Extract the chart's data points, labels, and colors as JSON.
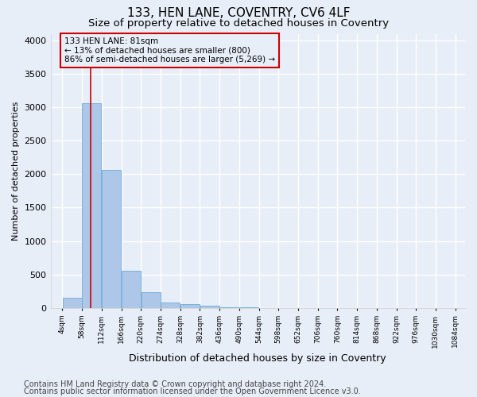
{
  "title": "133, HEN LANE, COVENTRY, CV6 4LF",
  "subtitle": "Size of property relative to detached houses in Coventry",
  "xlabel": "Distribution of detached houses by size in Coventry",
  "ylabel": "Number of detached properties",
  "bar_values": [
    150,
    3060,
    2060,
    560,
    230,
    75,
    55,
    35,
    10,
    5,
    3,
    2,
    1,
    0,
    0,
    0,
    0,
    0,
    0,
    0
  ],
  "bin_edges": [
    4,
    58,
    112,
    166,
    220,
    274,
    328,
    382,
    436,
    490,
    544,
    598,
    652,
    706,
    760,
    814,
    868,
    922,
    976,
    1030,
    1084
  ],
  "x_tick_labels": [
    "4sqm",
    "58sqm",
    "112sqm",
    "166sqm",
    "220sqm",
    "274sqm",
    "328sqm",
    "382sqm",
    "436sqm",
    "490sqm",
    "544sqm",
    "598sqm",
    "652sqm",
    "706sqm",
    "760sqm",
    "814sqm",
    "868sqm",
    "922sqm",
    "976sqm",
    "1030sqm",
    "1084sqm"
  ],
  "bar_color": "#aec6e8",
  "bar_edge_color": "#6aaed6",
  "background_color": "#e8eef8",
  "grid_color": "#ffffff",
  "property_line_x": 81,
  "property_line_color": "#cc0000",
  "annotation_text": "133 HEN LANE: 81sqm\n← 13% of detached houses are smaller (800)\n86% of semi-detached houses are larger (5,269) →",
  "annotation_box_color": "#cc0000",
  "ylim": [
    0,
    4100
  ],
  "yticks": [
    0,
    500,
    1000,
    1500,
    2000,
    2500,
    3000,
    3500,
    4000
  ],
  "footer_line1": "Contains HM Land Registry data © Crown copyright and database right 2024.",
  "footer_line2": "Contains public sector information licensed under the Open Government Licence v3.0.",
  "title_fontsize": 11,
  "subtitle_fontsize": 9.5,
  "footer_fontsize": 7
}
